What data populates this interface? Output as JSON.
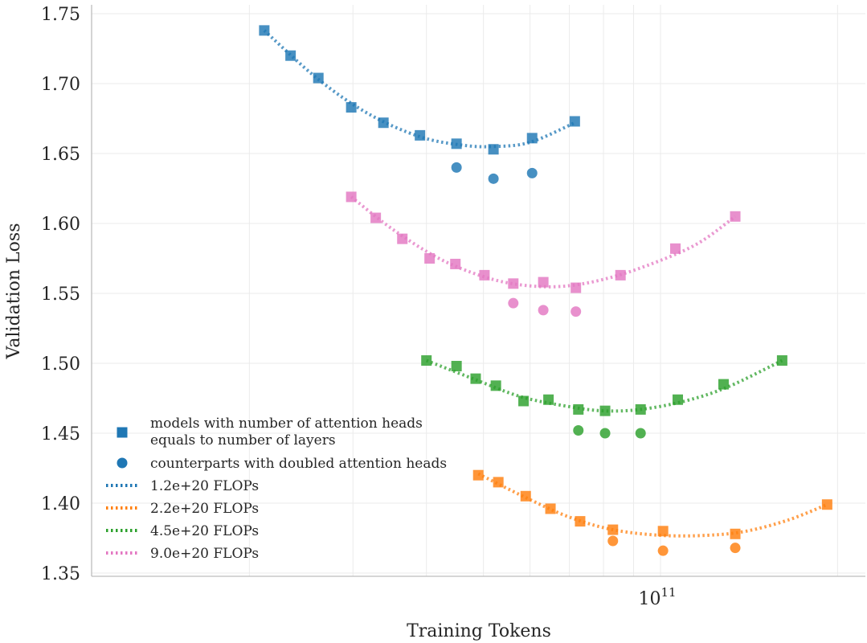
{
  "chart_data": {
    "type": "scatter",
    "title": "",
    "xlabel": "Training Tokens",
    "ylabel": "Validation Loss",
    "xscale": "log",
    "xlim": [
      20000000000.0,
      240000000000.0
    ],
    "ylim": [
      1.35,
      1.76
    ],
    "grid": true,
    "legend_position": "lower-left",
    "x_ticks": [
      {
        "value": 100000000000.0,
        "base": "10",
        "exp": "11"
      }
    ],
    "y_ticks": [
      {
        "value": 1.35,
        "label": "1.35"
      },
      {
        "value": 1.4,
        "label": "1.40"
      },
      {
        "value": 1.45,
        "label": "1.45"
      },
      {
        "value": 1.5,
        "label": "1.50"
      },
      {
        "value": 1.55,
        "label": "1.55"
      },
      {
        "value": 1.6,
        "label": "1.60"
      },
      {
        "value": 1.65,
        "label": "1.65"
      },
      {
        "value": 1.7,
        "label": "1.70"
      },
      {
        "value": 1.75,
        "label": "1.75"
      }
    ],
    "legend": [
      {
        "kind": "square",
        "color": "#1f77b4",
        "text": [
          "models with number of attention heads",
          "equals to number of layers"
        ]
      },
      {
        "kind": "circle",
        "color": "#1f77b4",
        "text": [
          "counterparts with doubled attention heads"
        ]
      },
      {
        "kind": "line",
        "color": "#1f77b4",
        "text": [
          "1.2e+20 FLOPs"
        ]
      },
      {
        "kind": "line",
        "color": "#ff7f0e",
        "text": [
          "2.2e+20 FLOPs"
        ]
      },
      {
        "kind": "line",
        "color": "#2ca02c",
        "text": [
          "4.5e+20 FLOPs"
        ]
      },
      {
        "kind": "line",
        "color": "#e377c2",
        "text": [
          "9.0e+20 FLOPs"
        ]
      }
    ],
    "series": [
      {
        "name": "1.2e+20 FLOPs",
        "color": "#1f77b4",
        "squares": [
          [
            21200000000.0,
            1.738
          ],
          [
            23500000000.0,
            1.72
          ],
          [
            26200000000.0,
            1.704
          ],
          [
            29800000000.0,
            1.683
          ],
          [
            33800000000.0,
            1.672
          ],
          [
            39000000000.0,
            1.663
          ],
          [
            45000000000.0,
            1.657
          ],
          [
            52000000000.0,
            1.653
          ],
          [
            60500000000.0,
            1.661
          ],
          [
            71500000000.0,
            1.673
          ]
        ],
        "circles": [
          [
            45000000000.0,
            1.64
          ],
          [
            52000000000.0,
            1.632
          ],
          [
            60500000000.0,
            1.636
          ]
        ],
        "fit": [
          [
            21200000000.0,
            1.738
          ],
          [
            26200000000.0,
            1.703
          ],
          [
            32000000000.0,
            1.678
          ],
          [
            39000000000.0,
            1.662
          ],
          [
            46000000000.0,
            1.656
          ],
          [
            52000000000.0,
            1.655
          ],
          [
            60000000000.0,
            1.658
          ],
          [
            71500000000.0,
            1.672
          ]
        ]
      },
      {
        "name": "2.2e+20 FLOPs",
        "color": "#ff7f0e",
        "squares": [
          [
            49000000000.0,
            1.42
          ],
          [
            53000000000.0,
            1.415
          ],
          [
            59000000000.0,
            1.405
          ],
          [
            65000000000.0,
            1.396
          ],
          [
            73000000000.0,
            1.387
          ],
          [
            83000000000.0,
            1.381
          ],
          [
            101000000000.0,
            1.38
          ],
          [
            134000000000.0,
            1.378
          ],
          [
            192000000000.0,
            1.399
          ]
        ],
        "circles": [
          [
            83000000000.0,
            1.373
          ],
          [
            101000000000.0,
            1.366
          ],
          [
            134000000000.0,
            1.368
          ]
        ],
        "fit": [
          [
            49000000000.0,
            1.421
          ],
          [
            59000000000.0,
            1.404
          ],
          [
            70000000000.0,
            1.39
          ],
          [
            83000000000.0,
            1.381
          ],
          [
            100000000000.0,
            1.377
          ],
          [
            120000000000.0,
            1.377
          ],
          [
            140000000000.0,
            1.38
          ],
          [
            165000000000.0,
            1.388
          ],
          [
            192000000000.0,
            1.399
          ]
        ]
      },
      {
        "name": "4.5e+20 FLOPs",
        "color": "#2ca02c",
        "squares": [
          [
            40000000000.0,
            1.502
          ],
          [
            45000000000.0,
            1.498
          ],
          [
            48500000000.0,
            1.489
          ],
          [
            52500000000.0,
            1.484
          ],
          [
            58500000000.0,
            1.473
          ],
          [
            64500000000.0,
            1.474
          ],
          [
            72500000000.0,
            1.467
          ],
          [
            80500000000.0,
            1.466
          ],
          [
            92500000000.0,
            1.467
          ],
          [
            107000000000.0,
            1.474
          ],
          [
            128000000000.0,
            1.485
          ],
          [
            161000000000.0,
            1.502
          ]
        ],
        "circles": [
          [
            72500000000.0,
            1.452
          ],
          [
            80500000000.0,
            1.45
          ],
          [
            92500000000.0,
            1.45
          ]
        ],
        "fit": [
          [
            40000000000.0,
            1.502
          ],
          [
            48000000000.0,
            1.489
          ],
          [
            58000000000.0,
            1.476
          ],
          [
            70000000000.0,
            1.469
          ],
          [
            80000000000.0,
            1.466
          ],
          [
            92500000000.0,
            1.467
          ],
          [
            110000000000.0,
            1.473
          ],
          [
            130000000000.0,
            1.483
          ],
          [
            161000000000.0,
            1.502
          ]
        ]
      },
      {
        "name": "9.0e+20 FLOPs",
        "color": "#e377c2",
        "squares": [
          [
            29800000000.0,
            1.619
          ],
          [
            32800000000.0,
            1.604
          ],
          [
            36400000000.0,
            1.589
          ],
          [
            40500000000.0,
            1.575
          ],
          [
            44800000000.0,
            1.571
          ],
          [
            50200000000.0,
            1.563
          ],
          [
            56200000000.0,
            1.557
          ],
          [
            63200000000.0,
            1.558
          ],
          [
            71800000000.0,
            1.554
          ],
          [
            85500000000.0,
            1.563
          ],
          [
            106000000000.0,
            1.582
          ],
          [
            134000000000.0,
            1.605
          ]
        ],
        "circles": [
          [
            56200000000.0,
            1.543
          ],
          [
            63200000000.0,
            1.538
          ],
          [
            71800000000.0,
            1.537
          ]
        ],
        "fit": [
          [
            29800000000.0,
            1.619
          ],
          [
            35000000000.0,
            1.596
          ],
          [
            42000000000.0,
            1.575
          ],
          [
            50000000000.0,
            1.562
          ],
          [
            58000000000.0,
            1.556
          ],
          [
            68000000000.0,
            1.555
          ],
          [
            80000000000.0,
            1.56
          ],
          [
            95000000000.0,
            1.57
          ],
          [
            115000000000.0,
            1.585
          ],
          [
            134000000000.0,
            1.605
          ]
        ]
      }
    ]
  }
}
